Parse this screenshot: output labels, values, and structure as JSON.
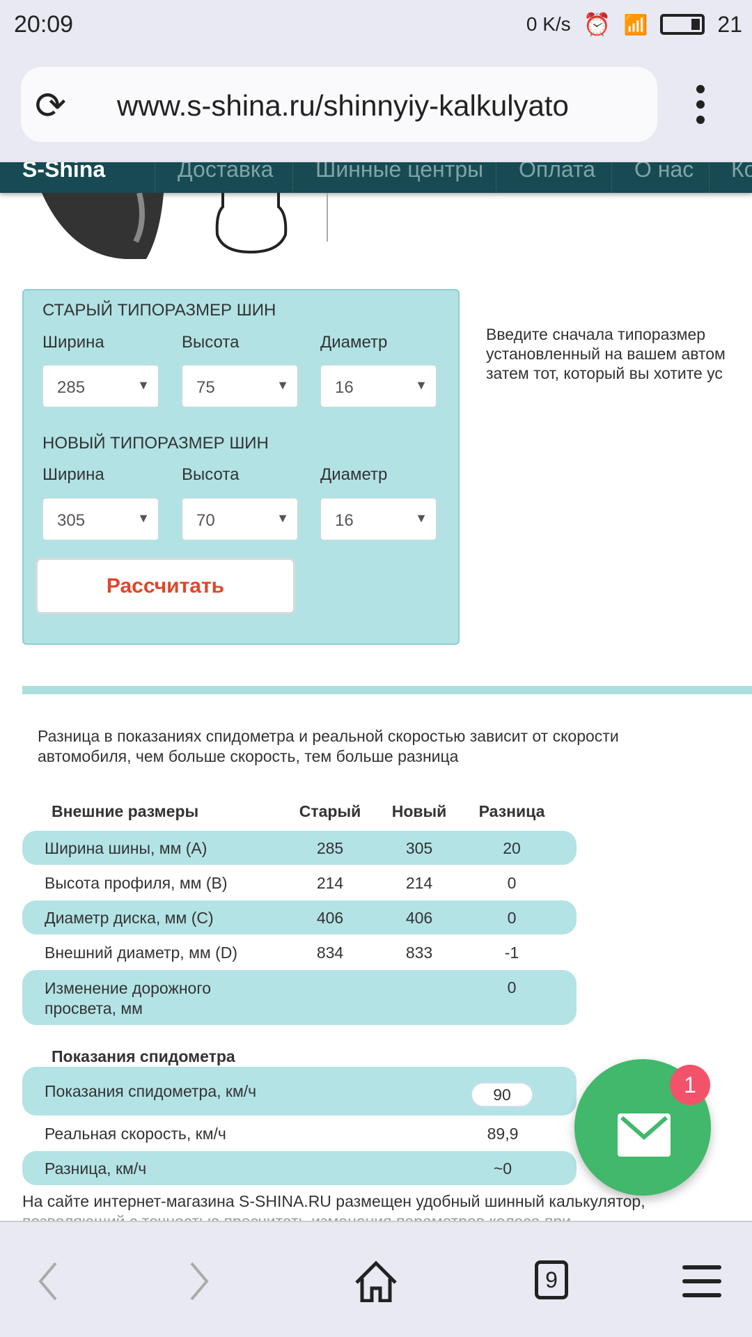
{
  "status_bar": {
    "time": "20:09",
    "net_speed": "0 K/s",
    "battery": "21",
    "icons": [
      "alarm-icon",
      "wifi-icon",
      "signal-4g-icon",
      "battery-icon"
    ]
  },
  "browser": {
    "url": "www.s-shina.ru/shinnyiy-kalkulyato",
    "tabs_count": "9"
  },
  "nav": {
    "logo": "S-Shina",
    "items": [
      "Доставка",
      "Шинные центры",
      "Оплата",
      "О нас",
      "Ко"
    ]
  },
  "calculator": {
    "old_title": "СТАРЫЙ ТИПОРАЗМЕР ШИН",
    "new_title": "НОВЫЙ ТИПОРАЗМЕР ШИН",
    "labels": [
      "Ширина",
      "Высота",
      "Диаметр"
    ],
    "old": {
      "width": "285",
      "height": "75",
      "diameter": "16"
    },
    "new": {
      "width": "305",
      "height": "70",
      "diameter": "16"
    },
    "button": "Рассчитать",
    "hint": [
      "Введите сначала типоразмер",
      "установленный на вашем автом",
      "затем тот, который вы хотите ус"
    ]
  },
  "description": [
    "Разница в показаниях спидометра и реальной скоростью зависит от скорости",
    "автомобиля, чем больше скорость, тем больше разница"
  ],
  "dimensions": {
    "headers": [
      "Внешние размеры",
      "Старый",
      "Новый",
      "Разница"
    ],
    "rows": [
      [
        "Ширина шины, мм (A)",
        "285",
        "305",
        "20"
      ],
      [
        "Высота профиля, мм (B)",
        "214",
        "214",
        "0"
      ],
      [
        "Диаметр диска, мм (C)",
        "406",
        "406",
        "0"
      ],
      [
        "Внешний диаметр, мм (D)",
        "834",
        "833",
        "-1"
      ],
      [
        "Изменение дорожного",
        "",
        "",
        "0"
      ]
    ],
    "row5_line2": "просвета, мм"
  },
  "speed": {
    "title": "Показания спидометра",
    "rows": [
      [
        "Показания спидометра, км/ч",
        "90"
      ],
      [
        "Реальная скорость, км/ч",
        "89,9"
      ],
      [
        "Разница, км/ч",
        "~0"
      ]
    ]
  },
  "chat": {
    "badge": "1"
  },
  "footer_text": "На сайте интернет-магазина S-SHINA.RU размещен удобный шинный калькулятор,",
  "footer_text2": "позволяющий с точностью просчитать изменения параметров колеса при"
}
